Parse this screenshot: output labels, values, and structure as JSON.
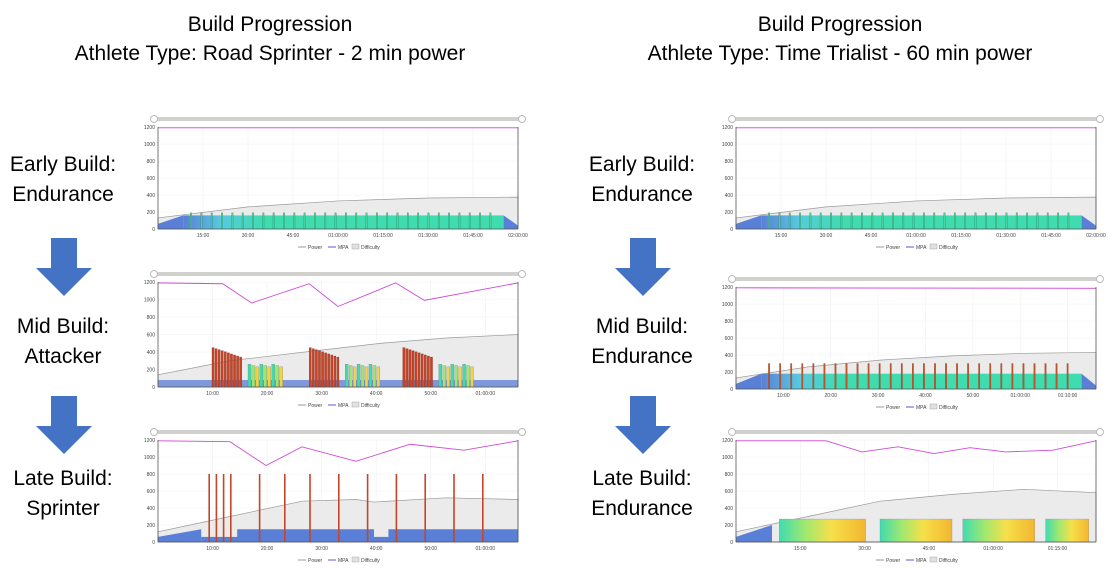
{
  "columns": [
    {
      "title_line1": "Build Progression",
      "title_line2": "Athlete Type: Road Sprinter - 2 min power",
      "phases": [
        {
          "line1": "Early Build:",
          "line2": "Endurance"
        },
        {
          "line1": "Mid Build:",
          "line2": "Attacker"
        },
        {
          "line1": "Late Build:",
          "line2": "Sprinter"
        }
      ]
    },
    {
      "title_line1": "Build Progression",
      "title_line2": "Athlete Type: Time Trialist - 60 min power",
      "phases": [
        {
          "line1": "Early Build:",
          "line2": "Endurance"
        },
        {
          "line1": "Mid Build:",
          "line2": "Endurance"
        },
        {
          "line1": "Late Build:",
          "line2": "Endurance"
        }
      ]
    }
  ],
  "arrow_color": "#4472c4",
  "chart_data": [
    {
      "id": "road-early",
      "type": "area",
      "ylim": [
        0,
        1200
      ],
      "yticks": [
        0,
        200,
        400,
        600,
        800,
        1000,
        1200
      ],
      "xticks": [
        "15:00",
        "30:00",
        "45:00",
        "01:00:00",
        "01:15:00",
        "01:30:00",
        "01:45:00",
        "02:00:00"
      ],
      "legend": [
        "Power",
        "MPA",
        "Difficulty"
      ],
      "series": [
        {
          "name": "Power",
          "pattern": "endurance-surges",
          "base": 160,
          "peak": 190,
          "intervals": 30
        },
        {
          "name": "MPA",
          "x": [
            0,
            1
          ],
          "y": [
            1190,
            1190
          ]
        },
        {
          "name": "Difficulty",
          "x": [
            0,
            0.25,
            0.5,
            0.75,
            1
          ],
          "y": [
            130,
            260,
            330,
            365,
            375
          ]
        }
      ]
    },
    {
      "id": "road-mid",
      "type": "area",
      "ylim": [
        0,
        1200
      ],
      "yticks": [
        0,
        200,
        400,
        600,
        800,
        1000,
        1200
      ],
      "xticks": [
        "10:00",
        "20:00",
        "30:00",
        "40:00",
        "50:00",
        "01:00:00"
      ],
      "legend": [
        "Power",
        "MPA",
        "Difficulty"
      ],
      "series": [
        {
          "name": "Power",
          "pattern": "attacker-blocks",
          "attack_peak": 450,
          "tempo_peak": 260
        },
        {
          "name": "MPA",
          "x": [
            0,
            0.18,
            0.26,
            0.42,
            0.5,
            0.66,
            0.74,
            1
          ],
          "y": [
            1190,
            1180,
            960,
            1180,
            920,
            1190,
            990,
            1190
          ]
        },
        {
          "name": "Difficulty",
          "x": [
            0,
            0.2,
            0.45,
            0.62,
            0.8,
            1
          ],
          "y": [
            140,
            300,
            420,
            500,
            560,
            600
          ]
        }
      ]
    },
    {
      "id": "road-late",
      "type": "area",
      "ylim": [
        0,
        1200
      ],
      "yticks": [
        0,
        200,
        400,
        600,
        800,
        1000,
        1200
      ],
      "xticks": [
        "10:00",
        "20:00",
        "30:00",
        "40:00",
        "50:00",
        "01:00:00"
      ],
      "legend": [
        "Power",
        "MPA",
        "Difficulty"
      ],
      "series": [
        {
          "name": "Power",
          "pattern": "sprints",
          "sprint_peak": 800,
          "base": 150
        },
        {
          "name": "MPA",
          "x": [
            0,
            0.2,
            0.3,
            0.4,
            0.55,
            0.7,
            0.85,
            1
          ],
          "y": [
            1190,
            1180,
            900,
            1120,
            950,
            1150,
            1080,
            1190
          ]
        },
        {
          "name": "Difficulty",
          "x": [
            0,
            0.2,
            0.4,
            0.55,
            0.6,
            0.8,
            1
          ],
          "y": [
            120,
            300,
            480,
            500,
            470,
            520,
            500
          ]
        }
      ]
    },
    {
      "id": "tt-early",
      "type": "area",
      "ylim": [
        0,
        1200
      ],
      "yticks": [
        0,
        200,
        400,
        600,
        800,
        1000,
        1200
      ],
      "xticks": [
        "15:00",
        "30:00",
        "45:00",
        "01:00:00",
        "01:15:00",
        "01:30:00",
        "01:45:00",
        "02:00:00"
      ],
      "legend": [
        "Power",
        "MPA",
        "Difficulty"
      ],
      "series": [
        {
          "name": "Power",
          "pattern": "endurance-surges",
          "base": 160,
          "peak": 190,
          "intervals": 30
        },
        {
          "name": "MPA",
          "x": [
            0,
            1
          ],
          "y": [
            1190,
            1190
          ]
        },
        {
          "name": "Difficulty",
          "x": [
            0,
            0.25,
            0.5,
            0.75,
            1
          ],
          "y": [
            130,
            260,
            330,
            365,
            375
          ]
        }
      ]
    },
    {
      "id": "tt-mid",
      "type": "area",
      "ylim": [
        0,
        1200
      ],
      "yticks": [
        0,
        200,
        400,
        600,
        800,
        1000,
        1200
      ],
      "xticks": [
        "10:00",
        "20:00",
        "30:00",
        "40:00",
        "50:00",
        "01:00:00",
        "01:10:00"
      ],
      "legend": [
        "Power",
        "MPA",
        "Difficulty"
      ],
      "series": [
        {
          "name": "Power",
          "pattern": "endurance-surges",
          "base": 180,
          "peak": 300,
          "intervals": 28
        },
        {
          "name": "MPA",
          "x": [
            0,
            1
          ],
          "y": [
            1190,
            1185
          ]
        },
        {
          "name": "Difficulty",
          "x": [
            0,
            0.2,
            0.4,
            0.6,
            0.8,
            1
          ],
          "y": [
            130,
            260,
            340,
            390,
            420,
            430
          ]
        }
      ]
    },
    {
      "id": "tt-late",
      "type": "area",
      "ylim": [
        0,
        1200
      ],
      "yticks": [
        0,
        200,
        400,
        600,
        800,
        1000,
        1200
      ],
      "xticks": [
        "15:00",
        "30:00",
        "45:00",
        "01:00:00",
        "01:15:00"
      ],
      "legend": [
        "Power",
        "MPA",
        "Difficulty"
      ],
      "series": [
        {
          "name": "Power",
          "pattern": "threshold-blocks",
          "base": 200,
          "peak": 270
        },
        {
          "name": "MPA",
          "x": [
            0,
            0.25,
            0.35,
            0.45,
            0.55,
            0.65,
            0.75,
            0.88,
            1
          ],
          "y": [
            1190,
            1190,
            1060,
            1120,
            1040,
            1110,
            1060,
            1080,
            1190
          ]
        },
        {
          "name": "Difficulty",
          "x": [
            0,
            0.2,
            0.4,
            0.6,
            0.8,
            1
          ],
          "y": [
            120,
            300,
            480,
            560,
            620,
            580
          ]
        }
      ]
    }
  ]
}
